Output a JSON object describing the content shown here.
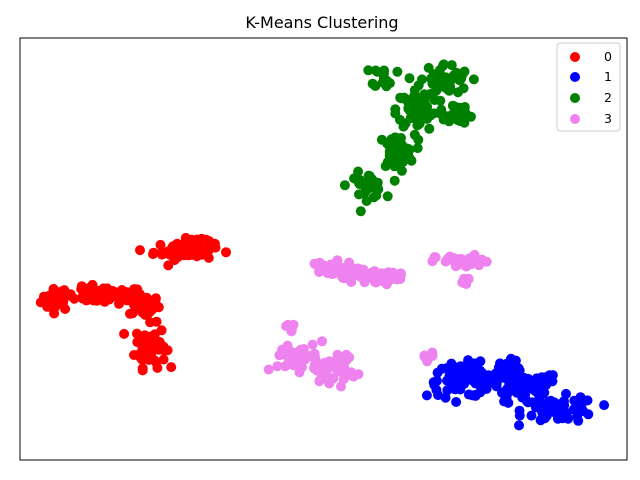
{
  "chart_data": {
    "type": "scatter",
    "title": "K-Means Clustering",
    "xlabel": "",
    "ylabel": "",
    "xlim": [
      0,
      100
    ],
    "ylim": [
      0,
      100
    ],
    "show_ticks": false,
    "grid": false,
    "legend_position": "top-right",
    "series": [
      {
        "name": "0",
        "color": "#ff0000",
        "blobs": [
          {
            "cx": 6,
            "cy": 38,
            "rx": 2.5,
            "ry": 2.5,
            "n": 35
          },
          {
            "cx": 14,
            "cy": 39,
            "rx": 6.5,
            "ry": 2.0,
            "n": 70
          },
          {
            "cx": 20.5,
            "cy": 36.5,
            "rx": 2.5,
            "ry": 2.5,
            "n": 35
          },
          {
            "cx": 21.5,
            "cy": 27,
            "rx": 2.5,
            "ry": 5.0,
            "n": 70
          },
          {
            "cx": 27,
            "cy": 49.5,
            "rx": 5.0,
            "ry": 2.0,
            "n": 60
          },
          {
            "cx": 29.5,
            "cy": 52,
            "rx": 2.5,
            "ry": 1.0,
            "n": 15
          }
        ]
      },
      {
        "name": "1",
        "color": "#0000ff",
        "blobs": [
          {
            "cx": 73,
            "cy": 19,
            "rx": 6.0,
            "ry": 4.0,
            "n": 70
          },
          {
            "cx": 83,
            "cy": 17,
            "rx": 6.0,
            "ry": 4.0,
            "n": 70
          },
          {
            "cx": 89,
            "cy": 12,
            "rx": 6.0,
            "ry": 3.0,
            "n": 60
          },
          {
            "cx": 80,
            "cy": 21,
            "rx": 3.0,
            "ry": 2.5,
            "n": 30
          }
        ]
      },
      {
        "name": "2",
        "color": "#008000",
        "blobs": [
          {
            "cx": 57,
            "cy": 65,
            "rx": 3.0,
            "ry": 3.0,
            "n": 30
          },
          {
            "cx": 62,
            "cy": 73,
            "rx": 3.0,
            "ry": 4.0,
            "n": 45
          },
          {
            "cx": 66,
            "cy": 83,
            "rx": 4.0,
            "ry": 5.0,
            "n": 70
          },
          {
            "cx": 70,
            "cy": 90,
            "rx": 4.0,
            "ry": 4.0,
            "n": 50
          },
          {
            "cx": 60,
            "cy": 91,
            "rx": 2.0,
            "ry": 2.5,
            "n": 15
          },
          {
            "cx": 72,
            "cy": 82,
            "rx": 2.5,
            "ry": 3.0,
            "n": 20
          }
        ]
      },
      {
        "name": "3",
        "color": "#ee82ee",
        "blobs": [
          {
            "cx": 51,
            "cy": 45,
            "rx": 4.0,
            "ry": 2.0,
            "n": 40
          },
          {
            "cx": 57,
            "cy": 43.5,
            "rx": 4.0,
            "ry": 1.8,
            "n": 40
          },
          {
            "cx": 61,
            "cy": 43,
            "rx": 2.5,
            "ry": 1.2,
            "n": 15
          },
          {
            "cx": 73,
            "cy": 47,
            "rx": 4.5,
            "ry": 1.5,
            "n": 35
          },
          {
            "cx": 73.5,
            "cy": 42,
            "rx": 1.0,
            "ry": 1.0,
            "n": 8
          },
          {
            "cx": 46,
            "cy": 24,
            "rx": 4.5,
            "ry": 4.0,
            "n": 40
          },
          {
            "cx": 52,
            "cy": 22,
            "rx": 3.5,
            "ry": 3.5,
            "n": 35
          },
          {
            "cx": 44.5,
            "cy": 31.5,
            "rx": 1.2,
            "ry": 1.2,
            "n": 6
          },
          {
            "cx": 67,
            "cy": 24.5,
            "rx": 1.2,
            "ry": 1.2,
            "n": 6
          }
        ]
      }
    ]
  }
}
